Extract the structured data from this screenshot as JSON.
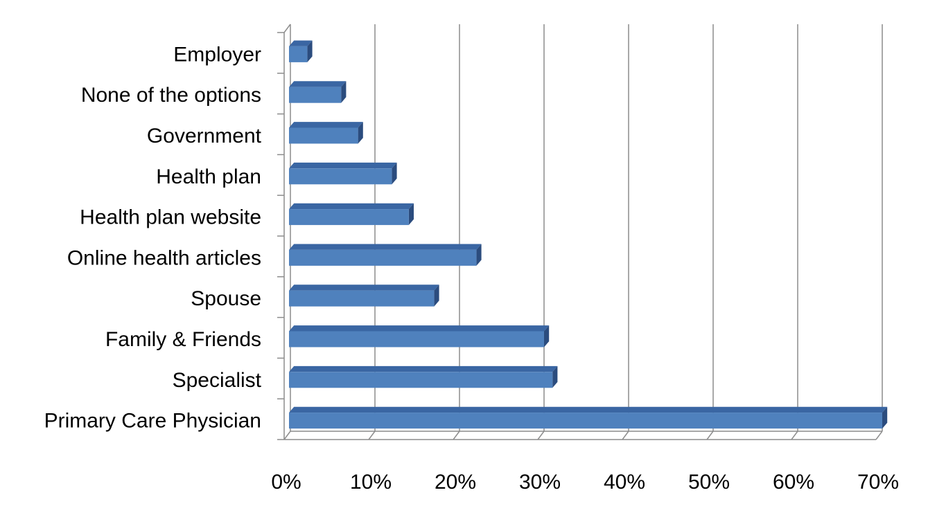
{
  "chart_data": {
    "type": "bar",
    "orientation": "horizontal",
    "categories": [
      "Primary Care Physician",
      "Specialist",
      "Family & Friends",
      "Spouse",
      "Online health articles",
      "Health plan website",
      "Health plan",
      "Government",
      "None of the options",
      "Employer"
    ],
    "values": [
      70,
      31,
      30,
      17,
      22,
      14,
      12,
      8,
      6,
      2
    ],
    "value_unit": "%",
    "xlim": [
      0,
      70
    ],
    "x_ticks": [
      "0%",
      "10%",
      "20%",
      "30%",
      "40%",
      "50%",
      "60%",
      "70%"
    ],
    "title": "",
    "xlabel": "",
    "ylabel": "",
    "grid": "vertical",
    "legend": "none",
    "style": "3d",
    "colors": {
      "bar_front": "#4F81BD",
      "bar_top": "#3A66A3",
      "bar_side": "#2B4C7E",
      "grid": "#8C8C8C"
    }
  }
}
